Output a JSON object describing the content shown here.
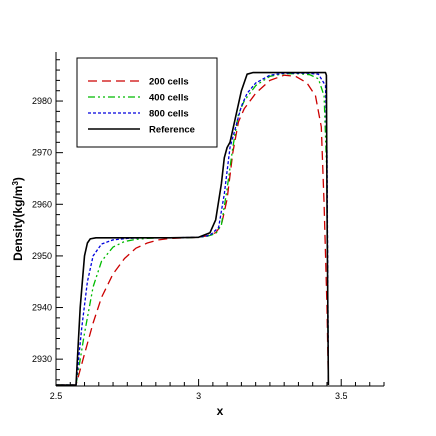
{
  "chart_data": {
    "type": "line",
    "xlabel": "x",
    "ylabel_main": "Density(kg/m",
    "ylabel_sup": "3",
    "ylabel_close": ")",
    "xlim": [
      2.5,
      3.65
    ],
    "ylim": [
      2924.8,
      2989.5
    ],
    "xticks": [
      2.5,
      3,
      3.5
    ],
    "xtick_labels": [
      "2.5",
      "3",
      "3.5"
    ],
    "yticks": [
      2930,
      2940,
      2950,
      2960,
      2970,
      2980
    ],
    "ytick_labels": [
      "2930",
      "2940",
      "2950",
      "2960",
      "2970",
      "2980"
    ],
    "grid": false,
    "legend_position": "top-left",
    "series": [
      {
        "name": "200 cells",
        "color": "#cc0000",
        "dash": "9,5",
        "x": [
          2.5,
          2.57,
          2.6,
          2.63,
          2.66,
          2.7,
          2.74,
          2.78,
          2.82,
          2.86,
          2.9,
          2.95,
          3.0,
          3.03,
          3.06,
          3.08,
          3.1,
          3.12,
          3.14,
          3.16,
          3.2,
          3.25,
          3.3,
          3.34,
          3.38,
          3.41,
          3.43,
          3.44,
          3.45,
          3.455
        ],
        "y": [
          2925,
          2925,
          2931,
          2937,
          2942,
          2946.5,
          2949.5,
          2951.5,
          2952.5,
          2953.1,
          2953.4,
          2953.5,
          2953.6,
          2953.9,
          2954.5,
          2956,
          2961,
          2970,
          2976,
          2978.5,
          2981.5,
          2984,
          2985,
          2984.8,
          2983.5,
          2981,
          2975,
          2960,
          2940,
          2925
        ]
      },
      {
        "name": "400 cells",
        "color": "#00bb00",
        "dash": "7,3,2,3,2,3",
        "x": [
          2.5,
          2.57,
          2.6,
          2.63,
          2.66,
          2.7,
          2.74,
          2.78,
          2.82,
          2.86,
          2.9,
          2.95,
          3.0,
          3.03,
          3.06,
          3.08,
          3.1,
          3.12,
          3.14,
          3.16,
          3.2,
          3.25,
          3.3,
          3.35,
          3.39,
          3.42,
          3.44,
          3.45,
          3.455
        ],
        "y": [
          2925,
          2925,
          2935,
          2944,
          2949,
          2951.7,
          2952.8,
          2953.2,
          2953.4,
          2953.5,
          2953.5,
          2953.5,
          2953.6,
          2953.8,
          2954.3,
          2956,
          2963,
          2971,
          2977.5,
          2980,
          2983,
          2984.8,
          2985.3,
          2985.3,
          2985.1,
          2984.3,
          2981,
          2965,
          2925
        ]
      },
      {
        "name": "800 cells",
        "color": "#0000dd",
        "dash": "3,2",
        "x": [
          2.5,
          2.57,
          2.59,
          2.61,
          2.63,
          2.66,
          2.7,
          2.75,
          2.8,
          2.9,
          3.0,
          3.04,
          3.07,
          3.09,
          3.11,
          3.13,
          3.15,
          3.17,
          3.2,
          3.25,
          3.3,
          3.38,
          3.42,
          3.445,
          3.45,
          3.455
        ],
        "y": [
          2925,
          2925,
          2936,
          2945,
          2950,
          2952.3,
          2953.1,
          2953.4,
          2953.5,
          2953.5,
          2953.6,
          2954,
          2955.5,
          2962,
          2971,
          2975,
          2979,
          2981.5,
          2983.5,
          2985,
          2985.4,
          2985.4,
          2985.2,
          2983,
          2970,
          2925
        ]
      },
      {
        "name": "Reference",
        "color": "#000000",
        "dash": "",
        "x": [
          2.5,
          2.57,
          2.585,
          2.6,
          2.61,
          2.62,
          2.64,
          2.7,
          2.8,
          2.9,
          3.0,
          3.04,
          3.06,
          3.08,
          3.09,
          3.1,
          3.11,
          3.13,
          3.15,
          3.17,
          3.19,
          3.2,
          3.25,
          3.3,
          3.4,
          3.445,
          3.448,
          3.45,
          3.455
        ],
        "y": [
          2925,
          2925,
          2940,
          2950,
          2952.5,
          2953.3,
          2953.5,
          2953.5,
          2953.5,
          2953.5,
          2953.6,
          2954.5,
          2957,
          2964,
          2969,
          2971,
          2972,
          2977,
          2982,
          2985.2,
          2985.5,
          2985.5,
          2985.5,
          2985.5,
          2985.5,
          2985.5,
          2985,
          2960,
          2925
        ]
      }
    ]
  }
}
